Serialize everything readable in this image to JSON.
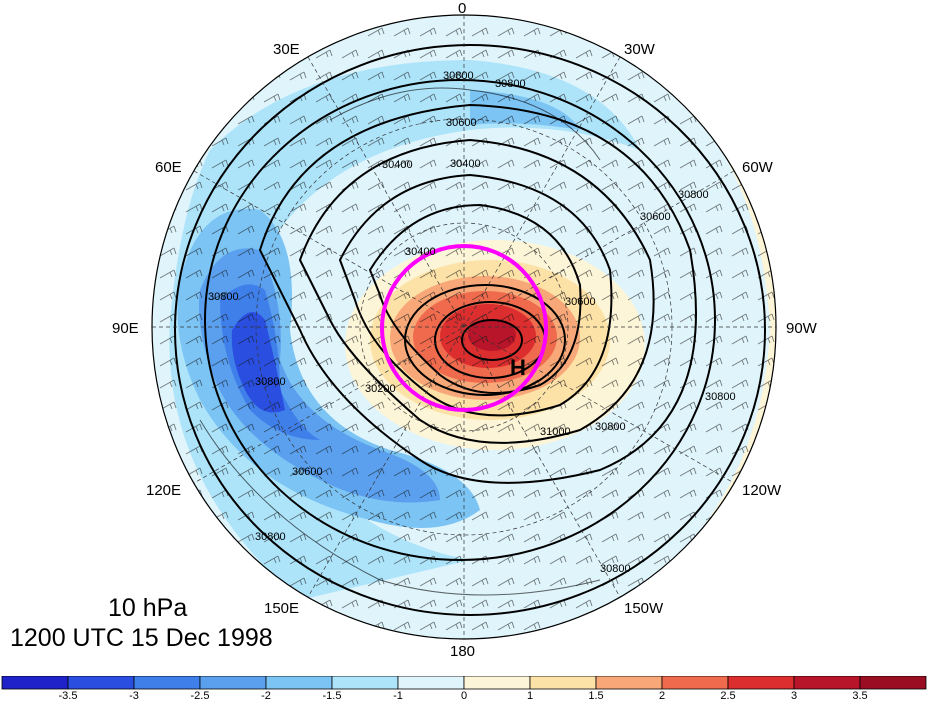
{
  "map": {
    "projection": "north polar stereographic",
    "longitude_labels": [
      "0",
      "30W",
      "60W",
      "90W",
      "120W",
      "150W",
      "180",
      "150E",
      "120E",
      "90E",
      "60E",
      "30E"
    ],
    "contour_labels": [
      "30800",
      "30800",
      "30600",
      "30400",
      "30400",
      "30800",
      "30600",
      "30800",
      "30200",
      "30800",
      "30600",
      "30800",
      "31000",
      "30800",
      "30600",
      "30800",
      "30800",
      "30400"
    ],
    "high_marker": "H",
    "highlight_circle_color": "#ff00ff"
  },
  "caption": {
    "level": "10 hPa",
    "time": "1200 UTC 15 Dec 1998"
  },
  "colorbar": {
    "ticks": [
      "-3.5",
      "-3",
      "-2.5",
      "-2",
      "-1.5",
      "-1",
      "0",
      "1",
      "1.5",
      "2",
      "2.5",
      "3",
      "3.5"
    ],
    "colors": [
      "#1f22c8",
      "#2a4fe0",
      "#3f7fea",
      "#5aa0ee",
      "#7cc4f4",
      "#aee4fa",
      "#dff4fb",
      "#fdf5d8",
      "#fde2a8",
      "#f8a878",
      "#f06a4e",
      "#dc2e2e",
      "#b8142a",
      "#9a0d22"
    ]
  }
}
